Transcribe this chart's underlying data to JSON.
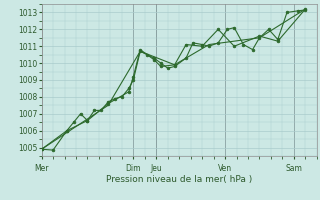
{
  "background_color": "#cce8e4",
  "grid_color": "#aacccc",
  "line_color": "#2d6a2d",
  "marker_color": "#2d6a2d",
  "xlabel": "Pression niveau de la mer( hPa )",
  "ylim": [
    1004.5,
    1013.5
  ],
  "yticks": [
    1005,
    1006,
    1007,
    1008,
    1009,
    1010,
    1011,
    1012,
    1013
  ],
  "day_labels": [
    "Mer",
    "Dim",
    "Jeu",
    "Ven",
    "Sam"
  ],
  "day_positions": [
    0,
    4,
    5,
    8,
    11
  ],
  "vline_day_positions": [
    0,
    4,
    5,
    8,
    11
  ],
  "xlim": [
    0,
    12
  ],
  "series1_x": [
    0,
    0.5,
    1.1,
    1.4,
    1.7,
    2.0,
    2.3,
    2.6,
    2.9,
    3.2,
    3.5,
    3.8,
    4.0,
    4.3,
    4.6,
    4.9,
    5.2,
    5.5,
    5.8,
    6.3,
    6.6,
    7.0,
    7.3,
    7.7,
    8.1,
    8.4,
    8.8,
    9.2,
    9.5,
    9.9,
    10.3,
    10.7,
    11.2,
    11.5
  ],
  "series1_y": [
    1004.9,
    1004.85,
    1006.0,
    1006.5,
    1007.0,
    1006.6,
    1007.2,
    1007.2,
    1007.7,
    1007.9,
    1008.0,
    1008.5,
    1009.0,
    1010.7,
    1010.5,
    1010.3,
    1010.0,
    1009.7,
    1009.8,
    1010.3,
    1011.2,
    1011.1,
    1011.0,
    1011.2,
    1012.0,
    1012.1,
    1011.1,
    1010.8,
    1011.5,
    1012.0,
    1011.4,
    1013.0,
    1013.1,
    1013.15
  ],
  "series2_x": [
    0,
    1.1,
    2.0,
    2.9,
    3.8,
    4.0,
    4.3,
    4.9,
    5.2,
    5.8,
    6.3,
    7.0,
    7.7,
    8.4,
    9.5,
    10.3,
    11.5
  ],
  "series2_y": [
    1004.9,
    1006.0,
    1006.6,
    1007.6,
    1008.3,
    1009.2,
    1010.8,
    1010.2,
    1009.8,
    1009.9,
    1011.1,
    1011.0,
    1012.0,
    1011.0,
    1011.6,
    1011.3,
    1013.2
  ],
  "series3_x": [
    0,
    2.9,
    4.3,
    5.8,
    7.3,
    9.5,
    11.5
  ],
  "series3_y": [
    1004.9,
    1007.5,
    1010.7,
    1009.9,
    1011.1,
    1011.5,
    1013.2
  ]
}
